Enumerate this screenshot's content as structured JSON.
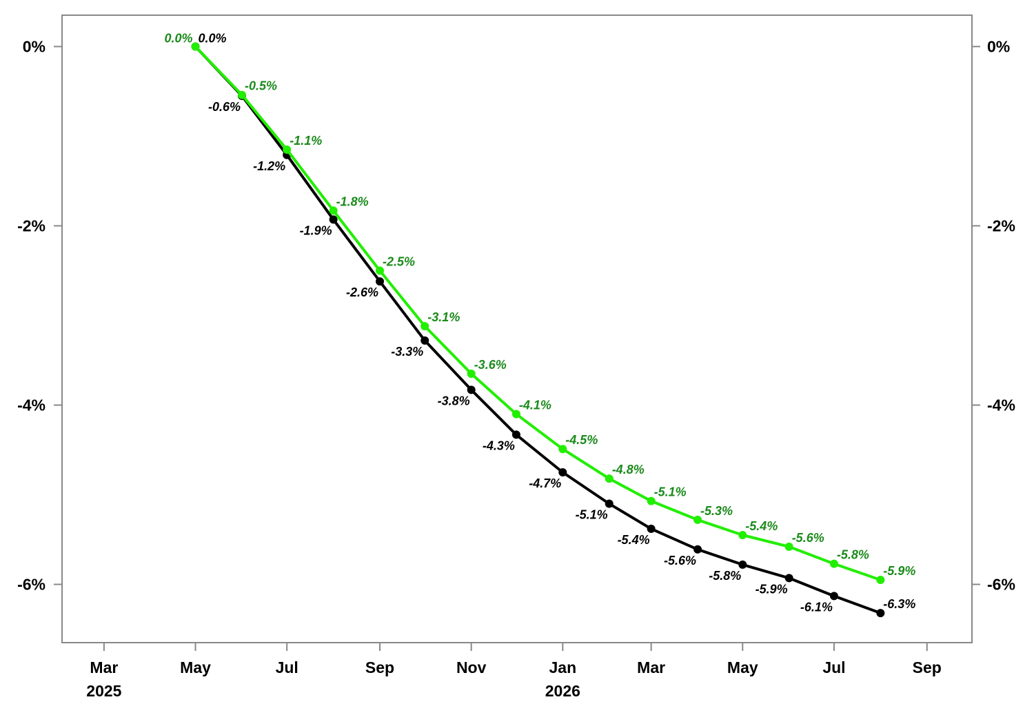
{
  "chart_data": {
    "type": "line",
    "title": "",
    "xlabel": "",
    "ylabel": "",
    "x_ticks": [
      {
        "date": "2025-03-01",
        "month": "Mar",
        "year": "2025"
      },
      {
        "date": "2025-05-01",
        "month": "May",
        "year": ""
      },
      {
        "date": "2025-07-01",
        "month": "Jul",
        "year": ""
      },
      {
        "date": "2025-09-01",
        "month": "Sep",
        "year": ""
      },
      {
        "date": "2025-11-01",
        "month": "Nov",
        "year": ""
      },
      {
        "date": "2026-01-01",
        "month": "Jan",
        "year": "2026"
      },
      {
        "date": "2026-03-01",
        "month": "Mar",
        "year": ""
      },
      {
        "date": "2026-05-01",
        "month": "May",
        "year": ""
      },
      {
        "date": "2026-07-01",
        "month": "Jul",
        "year": ""
      },
      {
        "date": "2026-09-01",
        "month": "Sep",
        "year": ""
      }
    ],
    "x_range": [
      "2025-02-01",
      "2026-10-01"
    ],
    "y_ticks": [
      {
        "value": 0,
        "label": "0%"
      },
      {
        "value": -2,
        "label": "-2%"
      },
      {
        "value": -4,
        "label": "-4%"
      },
      {
        "value": -6,
        "label": "-6%"
      }
    ],
    "ylim": [
      -6.65,
      0.35
    ],
    "secondary_y_axis": true,
    "grid": false,
    "legend": "none",
    "x": [
      "2025-05-01",
      "2025-06-01",
      "2025-07-01",
      "2025-08-01",
      "2025-09-01",
      "2025-10-01",
      "2025-11-01",
      "2025-12-01",
      "2026-01-01",
      "2026-02-01",
      "2026-03-01",
      "2026-04-01",
      "2026-05-01",
      "2026-06-01",
      "2026-07-01",
      "2026-08-01"
    ],
    "series": [
      {
        "color": "#000000",
        "label_color": "#000000",
        "values": [
          0.0,
          -0.55,
          -1.21,
          -1.93,
          -2.62,
          -3.28,
          -3.83,
          -4.33,
          -4.75,
          -5.1,
          -5.38,
          -5.61,
          -5.78,
          -5.93,
          -6.13,
          -6.32
        ],
        "labels": [
          "0.0%",
          "-0.6%",
          "-1.2%",
          "-1.9%",
          "-2.6%",
          "-3.3%",
          "-3.8%",
          "-4.3%",
          "-4.7%",
          "-5.1%",
          "-5.4%",
          "-5.6%",
          "-5.8%",
          "-5.9%",
          "-6.1%",
          "-6.3%"
        ],
        "label_placement": [
          "right",
          "below-left",
          "below-left",
          "below-left",
          "below-left",
          "below-left",
          "below-left",
          "below-left",
          "below-left",
          "below-left",
          "below-left",
          "below-left",
          "below-left",
          "below-left",
          "below-left",
          "right"
        ]
      },
      {
        "color": "#22ee00",
        "label_color": "#1a8a1a",
        "values": [
          0.0,
          -0.54,
          -1.15,
          -1.83,
          -2.5,
          -3.12,
          -3.65,
          -4.1,
          -4.49,
          -4.82,
          -5.07,
          -5.28,
          -5.45,
          -5.58,
          -5.77,
          -5.95
        ],
        "labels": [
          "0.0%",
          "-0.5%",
          "-1.1%",
          "-1.8%",
          "-2.5%",
          "-3.1%",
          "-3.6%",
          "-4.1%",
          "-4.5%",
          "-4.8%",
          "-5.1%",
          "-5.3%",
          "-5.4%",
          "-5.6%",
          "-5.8%",
          "-5.9%"
        ],
        "label_placement": [
          "left",
          "above-right",
          "above-right",
          "above-right",
          "above-right",
          "above-right",
          "above-right",
          "above-right",
          "above-right",
          "above-right",
          "above-right",
          "above-right",
          "above-right",
          "above-right",
          "above-right",
          "above-right"
        ]
      }
    ]
  }
}
